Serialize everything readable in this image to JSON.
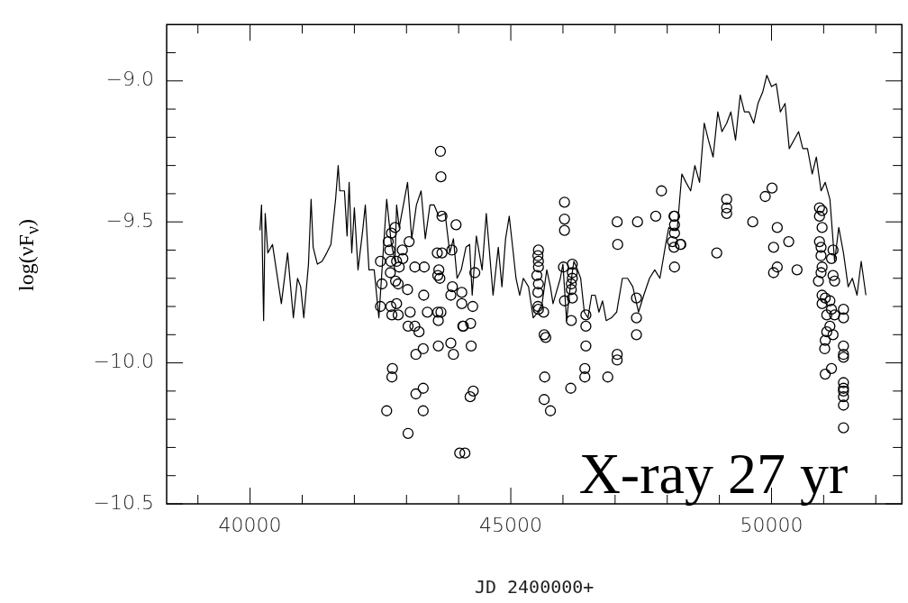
{
  "chart_data": {
    "type": "scatter",
    "xlabel": "JD 2400000+",
    "ylabel": "log(νF$_{ν}$)",
    "annotations": [
      "X-ray 27 yr"
    ],
    "xlim": [
      38400,
      52500
    ],
    "ylim": [
      -10.5,
      -8.8
    ],
    "xticks": [
      {
        "value": 39000,
        "label": null
      },
      {
        "value": 40000,
        "label": "40000"
      },
      {
        "value": 41000,
        "label": null
      },
      {
        "value": 42000,
        "label": null
      },
      {
        "value": 43000,
        "label": null
      },
      {
        "value": 44000,
        "label": null
      },
      {
        "value": 45000,
        "label": "45000"
      },
      {
        "value": 46000,
        "label": null
      },
      {
        "value": 47000,
        "label": null
      },
      {
        "value": 48000,
        "label": null
      },
      {
        "value": 49000,
        "label": null
      },
      {
        "value": 50000,
        "label": "50000"
      },
      {
        "value": 51000,
        "label": null
      },
      {
        "value": 52000,
        "label": null
      }
    ],
    "yticks": [
      {
        "value": -10.5,
        "label": "−10.5"
      },
      {
        "value": -10.4,
        "label": null
      },
      {
        "value": -10.3,
        "label": null
      },
      {
        "value": -10.2,
        "label": null
      },
      {
        "value": -10.1,
        "label": null
      },
      {
        "value": -10,
        "label": "−10.0"
      },
      {
        "value": -9.9,
        "label": null
      },
      {
        "value": -9.8,
        "label": null
      },
      {
        "value": -9.7,
        "label": null
      },
      {
        "value": -9.6,
        "label": null
      },
      {
        "value": -9.5,
        "label": "−9.5"
      },
      {
        "value": -9.4,
        "label": null
      },
      {
        "value": -9.3,
        "label": null
      },
      {
        "value": -9.2,
        "label": null
      },
      {
        "value": -9.1,
        "label": null
      },
      {
        "value": -9,
        "label": "−9.0"
      },
      {
        "value": -8.9,
        "label": null
      }
    ],
    "series": [
      {
        "type": "line",
        "color": "#000000",
        "marker": "none",
        "line_style": "solid",
        "x": [
          40190,
          40220,
          40260,
          40290,
          40340,
          40430,
          40600,
          40720,
          40830,
          40910,
          40970,
          41030,
          41120,
          41170,
          41210,
          41290,
          41380,
          41470,
          41550,
          41640,
          41690,
          41720,
          41810,
          41860,
          41900,
          41950,
          42000,
          42070,
          42160,
          42210,
          42280,
          42380,
          42470,
          42620,
          42710,
          42780,
          42810,
          42860,
          43020,
          43100,
          43190,
          43280,
          43360,
          43450,
          43530,
          43620,
          43740,
          43830,
          43900,
          43970,
          44050,
          44140,
          44210,
          44260,
          44340,
          44450,
          44530,
          44660,
          44760,
          44830,
          44900,
          44970,
          45030,
          45100,
          45170,
          45240,
          45340,
          45430,
          45520,
          45600,
          45690,
          45760,
          45810,
          45950,
          46000,
          46070,
          46140,
          46210,
          46280,
          46340,
          46410,
          46480,
          46550,
          46620,
          46690,
          46760,
          46830,
          46930,
          47030,
          47140,
          47240,
          47340,
          47450,
          47550,
          47660,
          47760,
          47860,
          47970,
          48030,
          48100,
          48190,
          48280,
          48360,
          48450,
          48530,
          48620,
          48710,
          48790,
          48880,
          48970,
          49050,
          49140,
          49220,
          49310,
          49400,
          49480,
          49570,
          49660,
          49740,
          49830,
          49910,
          50000,
          50090,
          50170,
          50260,
          50340,
          50430,
          50520,
          50600,
          50690,
          50780,
          50860,
          50950,
          51030,
          51120,
          51210,
          51290,
          51380,
          51470,
          51550,
          51640,
          51720,
          51810
        ],
        "values": [
          -9.53,
          -9.44,
          -9.85,
          -9.47,
          -9.61,
          -9.58,
          -9.79,
          -9.61,
          -9.84,
          -9.7,
          -9.73,
          -9.84,
          -9.65,
          -9.42,
          -9.59,
          -9.65,
          -9.64,
          -9.61,
          -9.58,
          -9.42,
          -9.3,
          -9.39,
          -9.39,
          -9.55,
          -9.36,
          -9.61,
          -9.45,
          -9.67,
          -9.53,
          -9.44,
          -9.67,
          -9.67,
          -9.84,
          -9.42,
          -9.58,
          -9.64,
          -9.44,
          -9.52,
          -9.36,
          -9.56,
          -9.44,
          -9.39,
          -9.56,
          -9.44,
          -9.44,
          -9.48,
          -9.47,
          -9.61,
          -9.56,
          -9.7,
          -9.67,
          -9.59,
          -9.58,
          -9.76,
          -9.55,
          -9.67,
          -9.47,
          -9.76,
          -9.59,
          -9.73,
          -9.56,
          -9.48,
          -9.58,
          -9.7,
          -9.76,
          -9.7,
          -9.73,
          -9.84,
          -9.82,
          -9.79,
          -9.67,
          -9.73,
          -9.79,
          -9.7,
          -9.65,
          -9.85,
          -9.73,
          -9.64,
          -9.67,
          -9.7,
          -9.82,
          -9.84,
          -9.76,
          -9.76,
          -9.82,
          -9.78,
          -9.85,
          -9.84,
          -9.82,
          -9.7,
          -9.7,
          -9.73,
          -9.82,
          -9.76,
          -9.7,
          -9.67,
          -9.7,
          -9.58,
          -9.52,
          -9.53,
          -9.53,
          -9.33,
          -9.36,
          -9.39,
          -9.3,
          -9.36,
          -9.15,
          -9.21,
          -9.27,
          -9.11,
          -9.18,
          -9.15,
          -9.11,
          -9.21,
          -9.05,
          -9.11,
          -9.11,
          -9.15,
          -9.08,
          -9.04,
          -8.98,
          -9.02,
          -9.01,
          -9.11,
          -9.08,
          -9.24,
          -9.21,
          -9.18,
          -9.24,
          -9.24,
          -9.33,
          -9.27,
          -9.39,
          -9.36,
          -9.42,
          -9.64,
          -9.52,
          -9.61,
          -9.73,
          -9.7,
          -9.76,
          -9.64,
          -9.76
        ]
      },
      {
        "type": "scatter",
        "color": "#000000",
        "marker": "circle",
        "x": [
          43650,
          43660,
          43680,
          43950,
          42780,
          42710,
          42650,
          43050,
          42920,
          42680,
          42500,
          42700,
          42810,
          42930,
          42860,
          43160,
          43340,
          43590,
          43680,
          42690,
          43620,
          43600,
          43640,
          42790,
          42840,
          42530,
          43880,
          44060,
          43020,
          43330,
          43850,
          44060,
          42500,
          42810,
          42700,
          42720,
          42840,
          43070,
          43400,
          43600,
          43660,
          43610,
          44080,
          43030,
          43160,
          43240,
          43850,
          43610,
          43320,
          43180,
          43900,
          42730,
          42720,
          43320,
          43180,
          42620,
          43320,
          43030,
          44020,
          44120,
          43870,
          44310,
          44270,
          44090,
          44230,
          44240,
          44280,
          44220,
          45530,
          45520,
          45530,
          45530,
          45500,
          45530,
          45520,
          45520,
          45530,
          45630,
          45640,
          45670,
          45650,
          45640,
          45760,
          46030,
          46030,
          46030,
          46010,
          46030,
          46180,
          46180,
          46180,
          46160,
          46160,
          46180,
          46160,
          46150,
          46440,
          46440,
          46440,
          46420,
          46420,
          46860,
          47040,
          47040,
          47040,
          47050,
          47430,
          47410,
          47410,
          47410,
          47780,
          48140,
          48140,
          48140,
          48100,
          48250,
          48140,
          47890,
          48130,
          48130,
          48260,
          48950,
          49140,
          49140,
          49140,
          49640,
          49880,
          50010,
          50110,
          50040,
          50110,
          50040,
          50330,
          50490,
          50920,
          50970,
          50920,
          50970,
          50920,
          50950,
          50950,
          50970,
          50950,
          50900,
          51150,
          51180,
          51180,
          51210,
          50970,
          51030,
          51120,
          50970,
          51150,
          51060,
          51210,
          51120,
          51060,
          51180,
          51030,
          51020,
          51150,
          51030,
          51380,
          51380,
          51380,
          51380,
          51380,
          51380,
          51380,
          51380,
          51380,
          51380,
          51380
        ],
        "values": [
          -9.25,
          -9.34,
          -9.48,
          -9.51,
          -9.52,
          -9.54,
          -9.57,
          -9.57,
          -9.6,
          -9.6,
          -9.64,
          -9.64,
          -9.64,
          -9.63,
          -9.66,
          -9.66,
          -9.66,
          -9.61,
          -9.61,
          -9.68,
          -9.67,
          -9.69,
          -9.7,
          -9.71,
          -9.72,
          -9.72,
          -9.73,
          -9.75,
          -9.74,
          -9.76,
          -9.76,
          -9.79,
          -9.8,
          -9.79,
          -9.8,
          -9.83,
          -9.83,
          -9.82,
          -9.82,
          -9.82,
          -9.82,
          -9.85,
          -9.87,
          -9.87,
          -9.87,
          -9.89,
          -9.93,
          -9.94,
          -9.95,
          -9.97,
          -9.97,
          -10.02,
          -10.05,
          -10.09,
          -10.11,
          -10.17,
          -10.17,
          -10.25,
          -10.32,
          -10.32,
          -9.6,
          -9.68,
          -9.8,
          -9.87,
          -9.86,
          -9.94,
          -10.1,
          -10.12,
          -9.6,
          -9.62,
          -9.64,
          -9.66,
          -9.69,
          -9.72,
          -9.75,
          -9.8,
          -9.81,
          -9.82,
          -9.9,
          -9.91,
          -10.05,
          -10.13,
          -10.17,
          -9.43,
          -9.49,
          -9.53,
          -9.66,
          -9.78,
          -9.65,
          -9.68,
          -9.7,
          -9.72,
          -9.74,
          -9.77,
          -9.85,
          -10.09,
          -9.83,
          -9.87,
          -9.94,
          -10.02,
          -10.05,
          -10.05,
          -9.97,
          -9.99,
          -9.5,
          -9.58,
          -9.5,
          -9.77,
          -9.84,
          -9.9,
          -9.48,
          -9.48,
          -9.51,
          -9.54,
          -9.57,
          -9.58,
          -9.66,
          -9.39,
          -9.48,
          -9.59,
          -9.58,
          -9.61,
          -9.42,
          -9.45,
          -9.47,
          -9.5,
          -9.41,
          -9.38,
          -9.52,
          -9.59,
          -9.66,
          -9.68,
          -9.57,
          -9.67,
          -9.45,
          -9.46,
          -9.48,
          -9.52,
          -9.57,
          -9.59,
          -9.62,
          -9.66,
          -9.68,
          -9.71,
          -9.63,
          -9.6,
          -9.69,
          -9.71,
          -9.76,
          -9.77,
          -9.78,
          -9.79,
          -9.81,
          -9.83,
          -9.83,
          -9.87,
          -9.89,
          -9.9,
          -9.92,
          -9.95,
          -10.02,
          -10.04,
          -9.81,
          -9.84,
          -9.94,
          -9.97,
          -9.98,
          -10.07,
          -10.09,
          -10.1,
          -10.12,
          -10.15,
          -10.23
        ]
      }
    ]
  }
}
